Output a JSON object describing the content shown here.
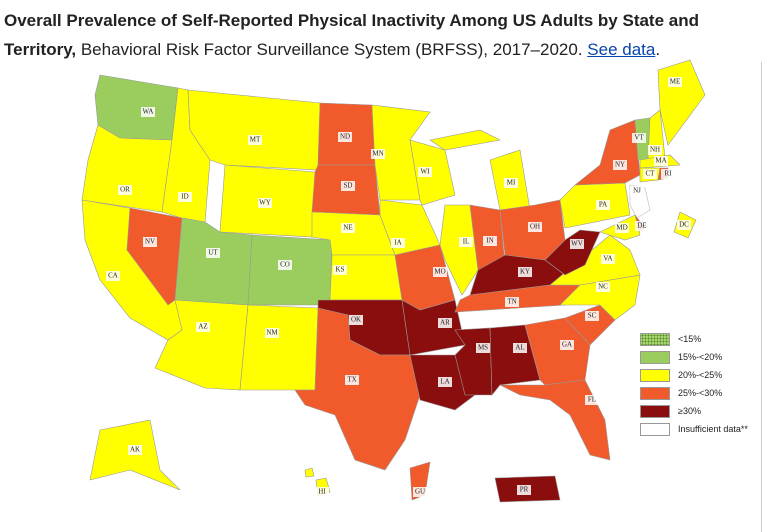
{
  "title": {
    "bold": "Overall Prevalence of Self-Reported Physical Inactivity Among US Adults by State and Territory,",
    "rest": " Behavioral Risk Factor Surveillance System (BRFSS), 2017–2020. ",
    "link": "See data",
    "end": "."
  },
  "legend": [
    {
      "label": "<15%",
      "color": "#a6d670",
      "pattern": "dotted"
    },
    {
      "label": "15%-<20%",
      "color": "#9acd5e"
    },
    {
      "label": "20%-<25%",
      "color": "#ffff00"
    },
    {
      "label": "25%-<30%",
      "color": "#f15a2b"
    },
    {
      "label": "≥30%",
      "color": "#8b0e0e"
    },
    {
      "label": "Insufficient data**",
      "color": "#ffffff"
    }
  ],
  "category_colors": {
    "green": "#9acd5e",
    "yellow": "#ffff00",
    "orange": "#f15a2b",
    "darkred": "#8b0e0e",
    "none": "#ffffff"
  },
  "states": {
    "WA": "green",
    "UT": "green",
    "CO": "green",
    "VT": "green",
    "OR": "yellow",
    "CA": "yellow",
    "ID": "yellow",
    "MT": "yellow",
    "WY": "yellow",
    "AZ": "yellow",
    "NM": "yellow",
    "NE": "yellow",
    "KS": "yellow",
    "MN": "yellow",
    "WI": "yellow",
    "IA": "yellow",
    "IL": "yellow",
    "MI": "yellow",
    "PA": "yellow",
    "NC": "yellow",
    "VA": "yellow",
    "MD": "yellow",
    "DC": "yellow",
    "CT": "yellow",
    "MA": "yellow",
    "NH": "yellow",
    "ME": "yellow",
    "AK": "yellow",
    "HI": "yellow",
    "NV": "orange",
    "ND": "orange",
    "SD": "orange",
    "TX": "orange",
    "MO": "orange",
    "IN": "orange",
    "OH": "orange",
    "TN": "orange",
    "GA": "orange",
    "SC": "orange",
    "FL": "orange",
    "NY": "orange",
    "RI": "orange",
    "DE": "orange",
    "GU": "orange",
    "OK": "darkred",
    "AR": "darkred",
    "LA": "darkred",
    "MS": "darkred",
    "AL": "darkred",
    "KY": "darkred",
    "WV": "darkred",
    "PR": "darkred",
    "NJ": "none"
  }
}
